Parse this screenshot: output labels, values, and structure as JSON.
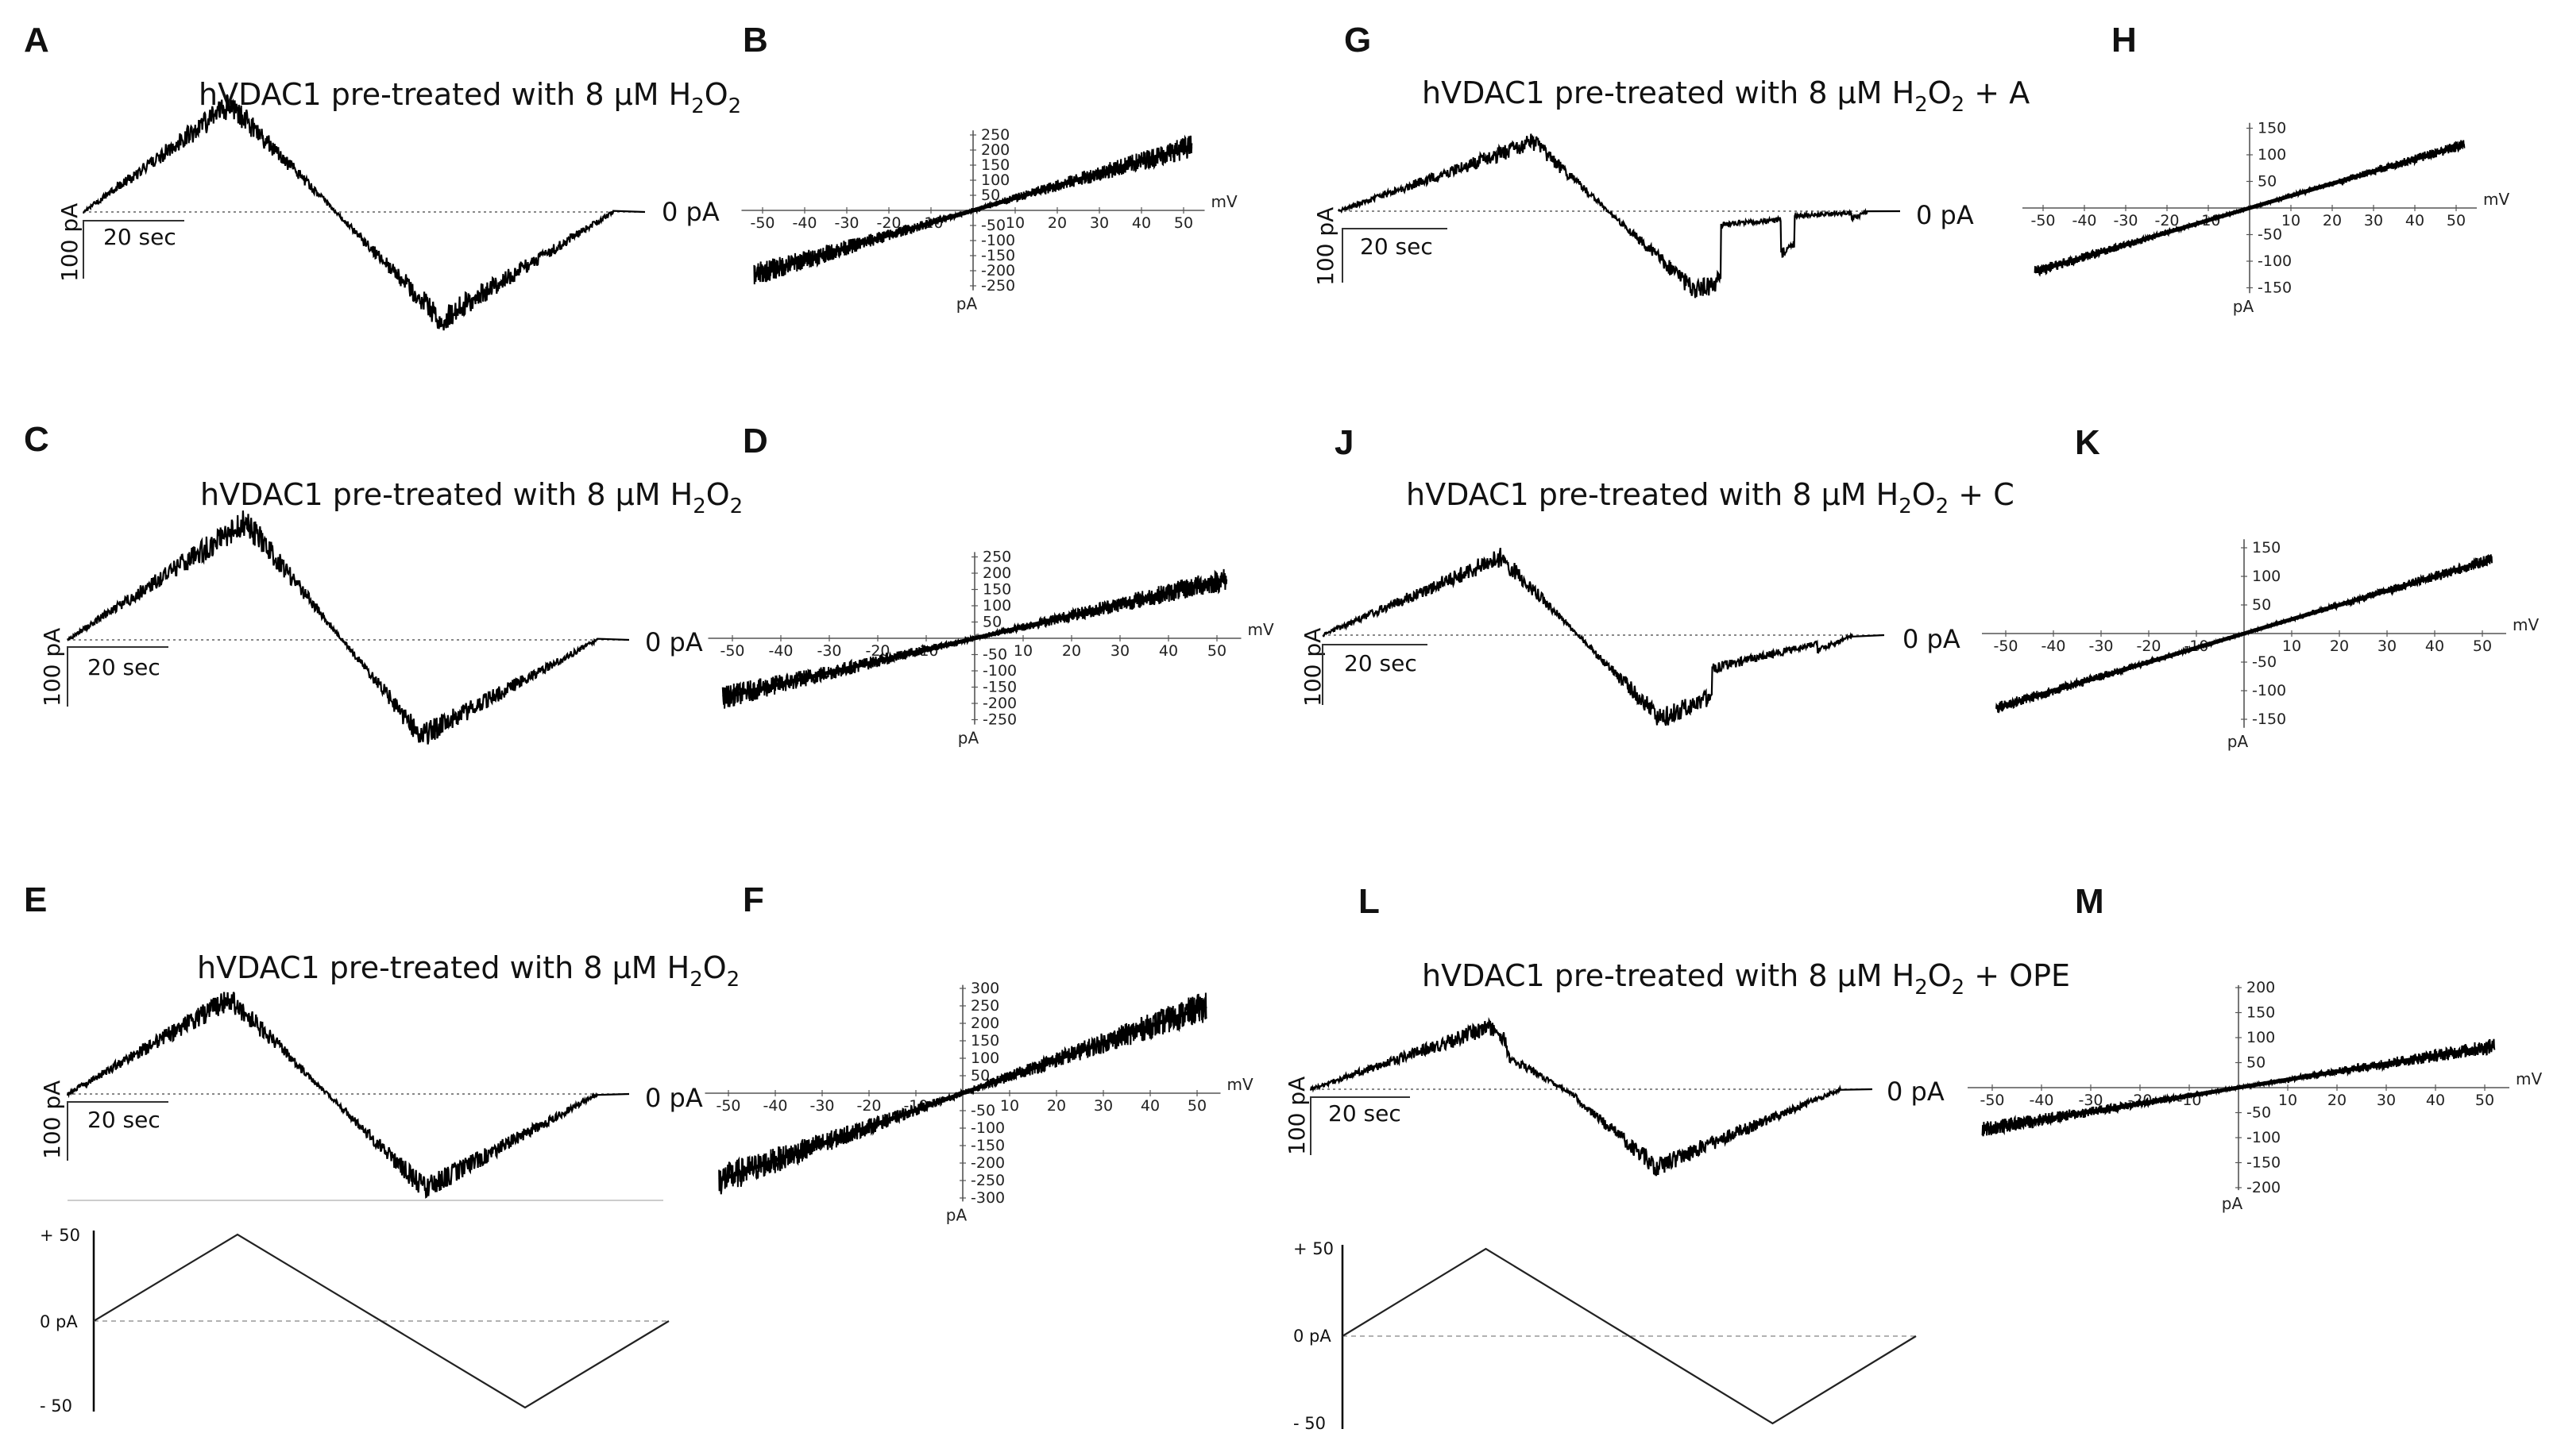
{
  "chart_data": [
    {
      "panel": "A",
      "type": "line",
      "kind": "current-trace",
      "title_prefix": "hVDAC1 pre-treated with 8 μM H",
      "title_sub1": "2",
      "title_mid": "O",
      "title_sub2": "2",
      "title_suffix": "",
      "zero_label": "0 pA",
      "scale_y": "100 pA",
      "scale_x": "20 sec",
      "peak_pA": 100,
      "trough_pA": -100,
      "events": []
    },
    {
      "panel": "B",
      "type": "scatter",
      "kind": "iv",
      "xlabel": "mV",
      "ylabel": "pA",
      "xticks": [
        -50,
        -40,
        -30,
        -20,
        -10,
        10,
        20,
        30,
        40,
        50
      ],
      "yticks": [
        250,
        200,
        150,
        100,
        50,
        -50,
        -100,
        -150,
        -200,
        -250
      ],
      "xlim": [
        -55,
        55
      ],
      "ylim": [
        -265,
        265
      ],
      "conductance_pA_per_mV": 4.1,
      "noise_pA": 30
    },
    {
      "panel": "C",
      "type": "line",
      "kind": "current-trace",
      "title_prefix": "hVDAC1 pre-treated with 8 μM H",
      "title_sub1": "2",
      "title_mid": "O",
      "title_sub2": "2",
      "title_suffix": "",
      "zero_label": "0 pA",
      "scale_y": "100 pA",
      "scale_x": "20 sec",
      "peak_pA": 110,
      "trough_pA": -90,
      "events": []
    },
    {
      "panel": "D",
      "type": "scatter",
      "kind": "iv",
      "xlabel": "mV",
      "ylabel": "pA",
      "xticks": [
        -50,
        -40,
        -30,
        -20,
        -10,
        10,
        20,
        30,
        40,
        50
      ],
      "yticks": [
        250,
        200,
        150,
        100,
        50,
        -50,
        -100,
        -150,
        -200,
        -250
      ],
      "xlim": [
        -55,
        55
      ],
      "ylim": [
        -265,
        265
      ],
      "conductance_pA_per_mV": 3.5,
      "noise_pA": 28
    },
    {
      "panel": "E",
      "type": "line",
      "kind": "current-trace",
      "title_prefix": "hVDAC1 pre-treated with 8 μM H",
      "title_sub1": "2",
      "title_mid": "O",
      "title_sub2": "2",
      "title_suffix": "",
      "zero_label": "0 pA",
      "scale_y": "100 pA",
      "scale_x": "20 sec",
      "peak_pA": 100,
      "trough_pA": -100,
      "events": []
    },
    {
      "panel": "F",
      "type": "scatter",
      "kind": "iv",
      "xlabel": "mV",
      "ylabel": "pA",
      "xticks": [
        -50,
        -40,
        -30,
        -20,
        -10,
        10,
        20,
        30,
        40,
        50
      ],
      "yticks": [
        300,
        250,
        200,
        150,
        100,
        50,
        -50,
        -100,
        -150,
        -200,
        -250,
        -300
      ],
      "xlim": [
        -55,
        55
      ],
      "ylim": [
        -310,
        310
      ],
      "conductance_pA_per_mV": 4.8,
      "noise_pA": 35
    },
    {
      "panel": "G",
      "type": "line",
      "kind": "current-trace",
      "title_prefix": "hVDAC1 pre-treated with 8 μM H",
      "title_sub1": "2",
      "title_mid": "O",
      "title_sub2": "2",
      "title_suffix": " + A",
      "zero_label": "0 pA",
      "scale_y": "100 pA",
      "scale_x": "20 sec",
      "peak_pA": 60,
      "trough_pA": -70,
      "events": [
        [
          0.56,
          0.74,
          0.2
        ],
        [
          0.78,
          0.95,
          0.15
        ]
      ]
    },
    {
      "panel": "H",
      "type": "scatter",
      "kind": "iv",
      "xlabel": "mV",
      "ylabel": "pA",
      "xticks": [
        -50,
        -40,
        -30,
        -20,
        -10,
        10,
        20,
        30,
        40,
        50
      ],
      "yticks": [
        150,
        100,
        50,
        -50,
        -100,
        -150
      ],
      "xlim": [
        -55,
        55
      ],
      "ylim": [
        -160,
        160
      ],
      "conductance_pA_per_mV": 2.3,
      "noise_pA": 8
    },
    {
      "panel": "J",
      "type": "line",
      "kind": "current-trace",
      "title_prefix": "hVDAC1 pre-treated with 8 μM H",
      "title_sub1": "2",
      "title_mid": "O",
      "title_sub2": "2",
      "title_suffix": " + C",
      "zero_label": "0 pA",
      "scale_y": "100 pA",
      "scale_x": "20 sec",
      "peak_pA": 70,
      "trough_pA": -75,
      "events": [
        [
          0.6,
          0.9,
          0.55
        ]
      ]
    },
    {
      "panel": "K",
      "type": "scatter",
      "kind": "iv",
      "xlabel": "mV",
      "ylabel": "pA",
      "xticks": [
        -50,
        -40,
        -30,
        -20,
        -10,
        10,
        20,
        30,
        40,
        50
      ],
      "yticks": [
        150,
        100,
        50,
        -50,
        -100,
        -150
      ],
      "xlim": [
        -55,
        55
      ],
      "ylim": [
        -165,
        165
      ],
      "conductance_pA_per_mV": 2.5,
      "noise_pA": 8
    },
    {
      "panel": "L",
      "type": "line",
      "kind": "current-trace",
      "title_prefix": "hVDAC1 pre-treated with 8 μM H",
      "title_sub1": "2",
      "title_mid": "O",
      "title_sub2": "2",
      "title_suffix": " + OPE",
      "zero_label": "0 pA",
      "scale_y": "100 pA",
      "scale_x": "20 sec",
      "peak_pA": 60,
      "trough_pA": -75,
      "events": [
        [
          0.05,
          0.25,
          0.7
        ]
      ]
    },
    {
      "panel": "M",
      "type": "scatter",
      "kind": "iv",
      "xlabel": "mV",
      "ylabel": "pA",
      "xticks": [
        -50,
        -40,
        -30,
        -20,
        -10,
        10,
        20,
        30,
        40,
        50
      ],
      "yticks": [
        200,
        150,
        100,
        50,
        -50,
        -100,
        -150,
        -200
      ],
      "xlim": [
        -55,
        55
      ],
      "ylim": [
        -205,
        205
      ],
      "conductance_pA_per_mV": 1.6,
      "noise_pA": 12
    },
    {
      "panel": "protocol-left",
      "type": "line",
      "kind": "voltage-protocol",
      "labels": [
        "+ 50",
        "0 pA",
        "- 50"
      ],
      "points_mV": [
        0,
        50,
        0,
        -50,
        0
      ]
    },
    {
      "panel": "protocol-right",
      "type": "line",
      "kind": "voltage-protocol",
      "labels": [
        "+ 50",
        "0 pA",
        "- 50"
      ],
      "points_mV": [
        0,
        50,
        0,
        -50,
        0
      ]
    }
  ]
}
